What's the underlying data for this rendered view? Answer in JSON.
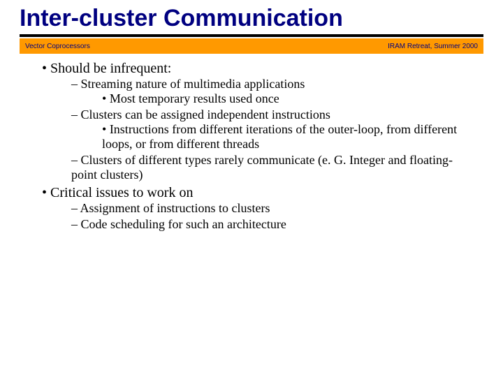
{
  "title": "Inter-cluster Communication",
  "subhead": {
    "left": "Vector Coprocessors",
    "right": "IRAM Retreat, Summer 2000",
    "bg_color": "#ff9900",
    "text_color": "#000080"
  },
  "colors": {
    "title_color": "#000080",
    "underline_color": "#000000",
    "body_text": "#000000",
    "background": "#ffffff"
  },
  "typography": {
    "title_font": "Arial",
    "title_size_pt": 34,
    "body_font": "Times New Roman",
    "l1_size_pt": 20,
    "l2_size_pt": 18,
    "l3_size_pt": 18
  },
  "bullets": [
    {
      "text": "Should be infrequent:",
      "sub": [
        {
          "text": "Streaming nature of multimedia applications",
          "sub": [
            {
              "text": "Most temporary results used once"
            }
          ]
        },
        {
          "text": "Clusters can be assigned independent instructions",
          "sub": [
            {
              "text": "Instructions from different iterations of the outer-loop, from different loops, or from different threads"
            }
          ]
        },
        {
          "text": "Clusters of different types rarely communicate (e. G. Integer and floating-point clusters)"
        }
      ]
    },
    {
      "text": "Critical issues to work on",
      "sub": [
        {
          "text": "Assignment of instructions to clusters"
        },
        {
          "text": "Code scheduling for such an architecture"
        }
      ]
    }
  ]
}
